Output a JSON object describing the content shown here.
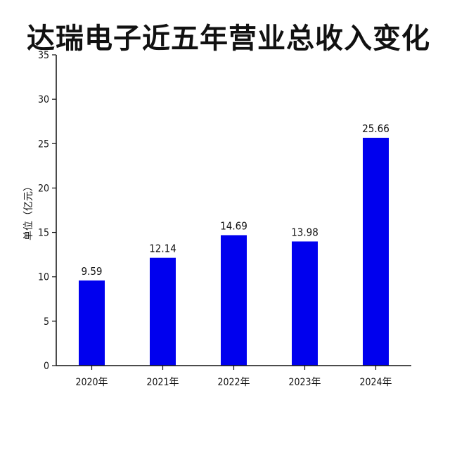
{
  "chart_data": {
    "type": "bar",
    "title": "达瑞电子近五年营业总收入变化",
    "ylabel": "单位（亿元）",
    "xlabel": "",
    "categories": [
      "2020年",
      "2021年",
      "2022年",
      "2023年",
      "2024年"
    ],
    "values": [
      9.59,
      12.14,
      14.69,
      13.98,
      25.66
    ],
    "data_labels": [
      "9.59",
      "12.14",
      "14.69",
      "13.98",
      "25.66"
    ],
    "yticks": [
      "0",
      "5",
      "10",
      "15",
      "20",
      "25",
      "30",
      "35"
    ],
    "ylim": [
      0,
      35
    ],
    "bar_color": "#0000ee",
    "grid": false,
    "legend": "none"
  }
}
